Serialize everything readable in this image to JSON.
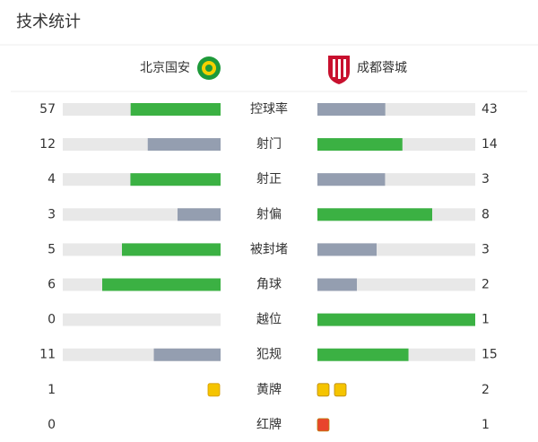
{
  "header": {
    "title": "技术统计"
  },
  "teams": {
    "home": "北京国安",
    "away": "成都蓉城"
  },
  "colors": {
    "leading": "#3bb143",
    "trailing": "#949eb0",
    "track": "#e8e8e8"
  },
  "stats": [
    {
      "label": "控球率",
      "home": 57,
      "away": 43
    },
    {
      "label": "射门",
      "home": 12,
      "away": 14
    },
    {
      "label": "射正",
      "home": 4,
      "away": 3
    },
    {
      "label": "射偏",
      "home": 3,
      "away": 8
    },
    {
      "label": "被封堵",
      "home": 5,
      "away": 3
    },
    {
      "label": "角球",
      "home": 6,
      "away": 2
    },
    {
      "label": "越位",
      "home": 0,
      "away": 1
    },
    {
      "label": "犯规",
      "home": 11,
      "away": 15
    }
  ],
  "cards": [
    {
      "label": "黄牌",
      "home": 1,
      "away": 2,
      "color": "#f5c400"
    },
    {
      "label": "红牌",
      "home": 0,
      "away": 1,
      "color": "#e8452c"
    }
  ]
}
